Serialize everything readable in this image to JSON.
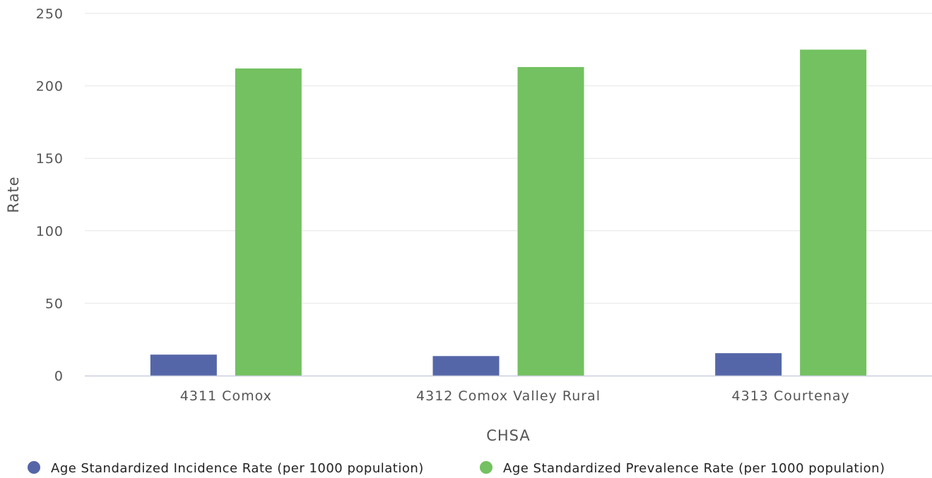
{
  "chart_data": {
    "type": "bar",
    "categories": [
      "4311 Comox",
      "4312 Comox Valley Rural",
      "4313 Courtenay"
    ],
    "series": [
      {
        "name": "Age Standardized Incidence Rate (per 1000 population)",
        "color": "#5566a8",
        "values": [
          14.5,
          13.5,
          15.5
        ]
      },
      {
        "name": "Age Standardized Prevalence Rate (per 1000 population)",
        "color": "#73c160",
        "values": [
          212,
          213,
          225
        ]
      }
    ],
    "xlabel": "CHSA",
    "ylabel": "Rate",
    "ylim": [
      0,
      250
    ],
    "yticks": [
      "0",
      "50",
      "100",
      "150",
      "200",
      "250"
    ],
    "grid": true,
    "legend_position": "bottom"
  }
}
